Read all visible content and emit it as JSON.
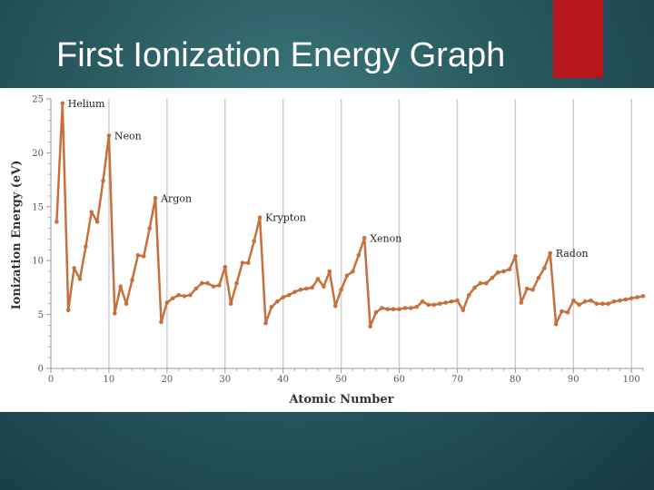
{
  "slide": {
    "title": "First Ionization Energy Graph"
  },
  "colors": {
    "line": "#c8703c",
    "marker": "#c8703c",
    "accent": "#b5161b",
    "grid": "#cfcfcf"
  },
  "chart_data": {
    "type": "line",
    "xlabel": "Atomic Number",
    "ylabel": "Ionization Energy (eV)",
    "xlim": [
      0,
      102
    ],
    "ylim": [
      0,
      25
    ],
    "xticks": [
      0,
      10,
      20,
      30,
      40,
      50,
      60,
      70,
      80,
      90,
      100
    ],
    "yticks": [
      0,
      5,
      10,
      15,
      20,
      25
    ],
    "grid": "vertical",
    "series": [
      {
        "x": [
          1,
          2,
          3,
          4,
          5,
          6,
          7,
          8,
          9,
          10,
          11,
          12,
          13,
          14,
          15,
          16,
          17,
          18,
          19,
          20,
          21,
          22,
          23,
          24,
          25,
          26,
          27,
          28,
          29,
          30,
          31,
          32,
          33,
          34,
          35,
          36,
          37,
          38,
          39,
          40,
          41,
          42,
          43,
          44,
          45,
          46,
          47,
          48,
          49,
          50,
          51,
          52,
          53,
          54,
          55,
          56,
          57,
          58,
          59,
          60,
          61,
          62,
          63,
          64,
          65,
          66,
          67,
          68,
          69,
          70,
          71,
          72,
          73,
          74,
          75,
          76,
          77,
          78,
          79,
          80,
          81,
          82,
          83,
          84,
          85,
          86,
          87,
          88,
          89,
          90,
          91,
          92,
          93,
          94,
          95,
          96,
          97,
          98,
          99,
          100,
          101,
          102
        ],
        "y": [
          13.6,
          24.6,
          5.4,
          9.3,
          8.3,
          11.3,
          14.5,
          13.6,
          17.4,
          21.6,
          5.1,
          7.6,
          6.0,
          8.2,
          10.5,
          10.4,
          13.0,
          15.8,
          4.3,
          6.1,
          6.5,
          6.8,
          6.7,
          6.8,
          7.4,
          7.9,
          7.9,
          7.6,
          7.7,
          9.4,
          6.0,
          7.9,
          9.8,
          9.8,
          11.8,
          14.0,
          4.2,
          5.7,
          6.2,
          6.6,
          6.8,
          7.1,
          7.3,
          7.4,
          7.5,
          8.3,
          7.6,
          9.0,
          5.8,
          7.3,
          8.6,
          9.0,
          10.5,
          12.1,
          3.9,
          5.2,
          5.6,
          5.5,
          5.5,
          5.5,
          5.6,
          5.6,
          5.7,
          6.2,
          5.9,
          5.9,
          6.0,
          6.1,
          6.2,
          6.3,
          5.4,
          6.8,
          7.5,
          7.9,
          7.9,
          8.4,
          8.9,
          9.0,
          9.2,
          10.4,
          6.1,
          7.4,
          7.3,
          8.4,
          9.3,
          10.7,
          4.1,
          5.3,
          5.2,
          6.3,
          5.9,
          6.2,
          6.3,
          6.0,
          6.0,
          6.0,
          6.2,
          6.3,
          6.4,
          6.5,
          6.6,
          6.7
        ]
      }
    ],
    "annotations": [
      {
        "label": "Helium",
        "x": 2,
        "y": 24.6
      },
      {
        "label": "Neon",
        "x": 10,
        "y": 21.6
      },
      {
        "label": "Argon",
        "x": 18,
        "y": 15.8
      },
      {
        "label": "Krypton",
        "x": 36,
        "y": 14.0
      },
      {
        "label": "Xenon",
        "x": 54,
        "y": 12.1
      },
      {
        "label": "Radon",
        "x": 86,
        "y": 10.7
      }
    ]
  }
}
